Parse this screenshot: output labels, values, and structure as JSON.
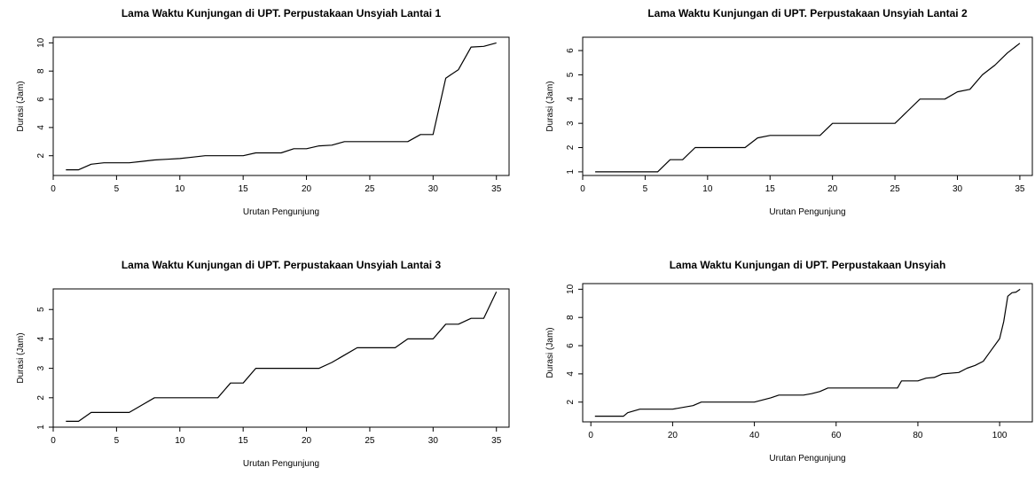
{
  "chart_data": [
    {
      "type": "line",
      "title": "Lama Waktu Kunjungan di UPT. Perpustakaan Unsyiah Lantai 1",
      "xlabel": "Urutan Pengunjung",
      "ylabel": "Durasi (Jam)",
      "xlim": [
        0,
        36
      ],
      "ylim": [
        0.6,
        10.4
      ],
      "xticks": [
        0,
        5,
        10,
        15,
        20,
        25,
        30,
        35
      ],
      "yticks": [
        2,
        4,
        6,
        8,
        10
      ],
      "color": "#000000",
      "series": [
        {
          "x": [
            1,
            2,
            3,
            4,
            5,
            6,
            7,
            8,
            9,
            10,
            11,
            12,
            13,
            14,
            15,
            16,
            17,
            18,
            19,
            20,
            21,
            22,
            23,
            24,
            25,
            26,
            27,
            28,
            29,
            30,
            31,
            32,
            33,
            34,
            35
          ],
          "values": [
            1,
            1,
            1.4,
            1.5,
            1.5,
            1.5,
            1.6,
            1.7,
            1.75,
            1.8,
            1.9,
            2,
            2,
            2,
            2,
            2.2,
            2.2,
            2.2,
            2.5,
            2.5,
            2.7,
            2.75,
            3,
            3,
            3,
            3,
            3,
            3,
            3.5,
            3.5,
            7.5,
            8.1,
            9.7,
            9.75,
            10
          ]
        }
      ]
    },
    {
      "type": "line",
      "title": "Lama Waktu Kunjungan di UPT. Perpustakaan Unsyiah Lantai 2",
      "xlabel": "Urutan Pengunjung",
      "ylabel": "Durasi (Jam)",
      "xlim": [
        0,
        36
      ],
      "ylim": [
        0.85,
        6.55
      ],
      "xticks": [
        0,
        5,
        10,
        15,
        20,
        25,
        30,
        35
      ],
      "yticks": [
        1,
        2,
        3,
        4,
        5,
        6
      ],
      "color": "#000000",
      "series": [
        {
          "x": [
            1,
            2,
            3,
            4,
            5,
            6,
            7,
            8,
            9,
            10,
            11,
            12,
            13,
            14,
            15,
            16,
            17,
            18,
            19,
            20,
            21,
            22,
            23,
            24,
            25,
            26,
            27,
            28,
            29,
            30,
            31,
            32,
            33,
            34,
            35
          ],
          "values": [
            1,
            1,
            1,
            1,
            1,
            1,
            1.5,
            1.5,
            2,
            2,
            2,
            2,
            2,
            2.4,
            2.5,
            2.5,
            2.5,
            2.5,
            2.5,
            3,
            3,
            3,
            3,
            3,
            3,
            3.5,
            4,
            4,
            4,
            4.3,
            4.4,
            5,
            5.4,
            5.9,
            6.3
          ]
        }
      ]
    },
    {
      "type": "line",
      "title": "Lama Waktu Kunjungan di UPT. Perpustakaan Unsyiah Lantai 3",
      "xlabel": "Urutan Pengunjung",
      "ylabel": "Durasi (Jam)",
      "xlim": [
        0,
        36
      ],
      "ylim": [
        1,
        5.7
      ],
      "xticks": [
        0,
        5,
        10,
        15,
        20,
        25,
        30,
        35
      ],
      "yticks": [
        1,
        2,
        3,
        4,
        5
      ],
      "color": "#000000",
      "series": [
        {
          "x": [
            1,
            2,
            3,
            4,
            5,
            6,
            7,
            8,
            9,
            10,
            11,
            12,
            13,
            14,
            15,
            16,
            17,
            18,
            19,
            20,
            21,
            22,
            23,
            24,
            25,
            26,
            27,
            28,
            29,
            30,
            31,
            32,
            33,
            34,
            35
          ],
          "values": [
            1.2,
            1.2,
            1.5,
            1.5,
            1.5,
            1.5,
            1.75,
            2,
            2,
            2,
            2,
            2,
            2,
            2.5,
            2.5,
            3,
            3,
            3,
            3,
            3,
            3,
            3.2,
            3.45,
            3.7,
            3.7,
            3.7,
            3.7,
            4,
            4,
            4,
            4.5,
            4.5,
            4.7,
            4.7,
            5.6
          ]
        }
      ]
    },
    {
      "type": "line",
      "title": "Lama Waktu Kunjungan di UPT. Perpustakaan Unsyiah",
      "xlabel": "Urutan Pengunjung",
      "ylabel": "Durasi (Jam)",
      "xlim": [
        -2,
        108
      ],
      "ylim": [
        0.6,
        10.4
      ],
      "xticks": [
        0,
        20,
        40,
        60,
        80,
        100
      ],
      "yticks": [
        2,
        4,
        6,
        8,
        10
      ],
      "color": "#000000",
      "series": [
        {
          "x": [
            1,
            8,
            9,
            12,
            20,
            25,
            27,
            40,
            42,
            44,
            46,
            52,
            54,
            56,
            58,
            72,
            75,
            76,
            80,
            82,
            84,
            86,
            90,
            92,
            94,
            96,
            97,
            98,
            100,
            101,
            102,
            103,
            104,
            105
          ],
          "values": [
            1,
            1,
            1.25,
            1.5,
            1.5,
            1.75,
            2,
            2,
            2.15,
            2.3,
            2.5,
            2.5,
            2.6,
            2.75,
            3,
            3,
            3,
            3.5,
            3.5,
            3.7,
            3.75,
            4,
            4.1,
            4.4,
            4.6,
            4.9,
            5.3,
            5.7,
            6.5,
            7.7,
            9.5,
            9.75,
            9.8,
            10
          ]
        }
      ]
    }
  ]
}
